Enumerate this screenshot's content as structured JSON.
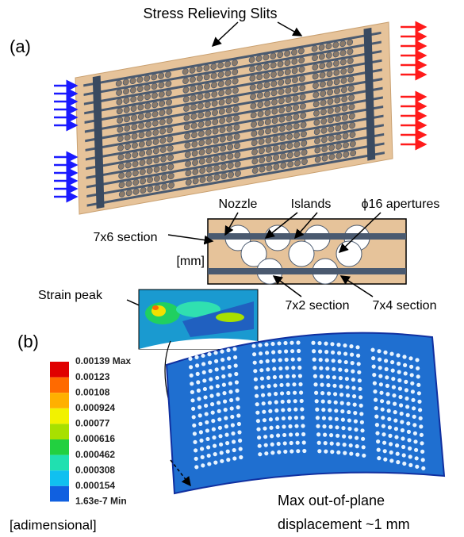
{
  "panel_a": {
    "label": "(a)",
    "title": "Stress Relieving Slits",
    "inset_labels": {
      "nozzle": "Nozzle",
      "islands": "Islands",
      "apertures": "ϕ16 apertures",
      "section_7x6": "7x6 section",
      "unit": "[mm]",
      "section_7x2": "7x2 section",
      "section_7x4": "7x4 section"
    }
  },
  "panel_b": {
    "label": "(b)",
    "strain_peak": "Strain peak",
    "legend_labels": [
      "0.00139 Max",
      "0.00123",
      "0.00108",
      "0.000924",
      "0.00077",
      "0.000616",
      "0.000462",
      "0.000308",
      "0.000154",
      "1.63e-7 Min"
    ],
    "legend_colors": [
      "#e00000",
      "#ff6a00",
      "#ffb000",
      "#f2f200",
      "#a8e000",
      "#22d040",
      "#20e0b0",
      "#10c0f0",
      "#1060e0"
    ],
    "unit": "[adimensional]",
    "caption_lines": [
      "Max out-of-plane",
      "displacement ~1 mm"
    ]
  }
}
